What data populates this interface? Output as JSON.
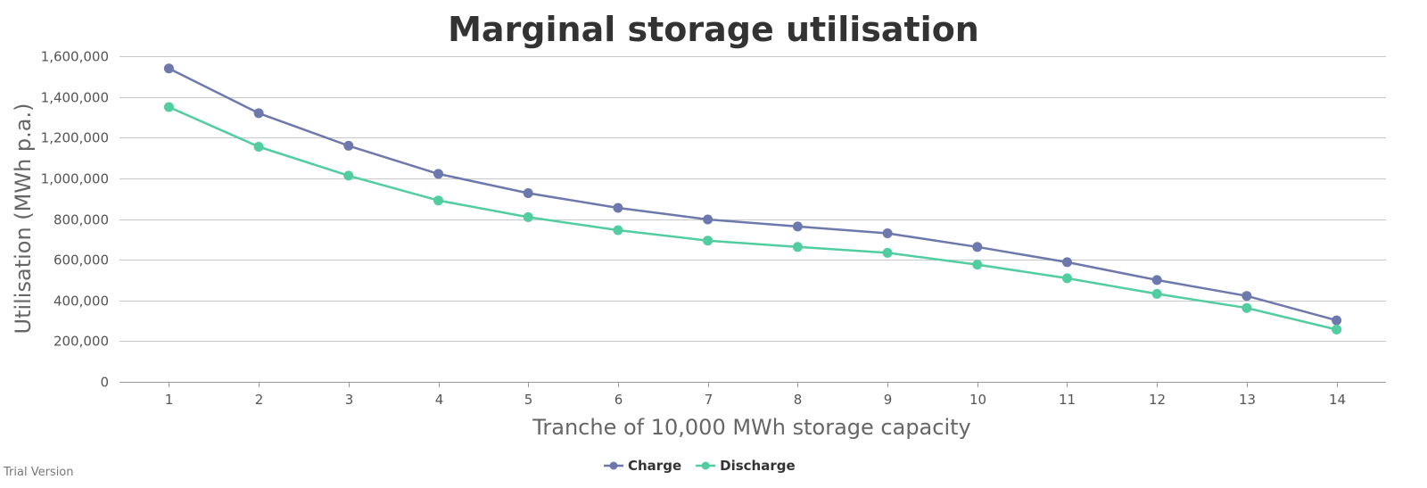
{
  "chart_data": {
    "type": "line",
    "title": "Marginal storage utilisation",
    "xlabel": "Tranche of 10,000 MWh storage capacity",
    "ylabel": "Utilisation (MWh p.a.)",
    "x": [
      1,
      2,
      3,
      4,
      5,
      6,
      7,
      8,
      9,
      10,
      11,
      12,
      13,
      14
    ],
    "xlim": [
      0.45,
      14.55
    ],
    "ylim": [
      0,
      1600000
    ],
    "yticks": [
      0,
      200000,
      400000,
      600000,
      800000,
      1000000,
      1200000,
      1400000,
      1600000
    ],
    "ytick_labels": [
      "0",
      "200,000",
      "400,000",
      "600,000",
      "800,000",
      "1,000,000",
      "1,200,000",
      "1,400,000",
      "1,600,000"
    ],
    "grid": true,
    "legend_position": "bottom-center",
    "series": [
      {
        "name": "Charge",
        "color": "#6d78ad",
        "values": [
          1540000,
          1320000,
          1160000,
          1022000,
          927000,
          855000,
          798000,
          763000,
          730000,
          663000,
          588000,
          500000,
          422000,
          302000
        ]
      },
      {
        "name": "Discharge",
        "color": "#51cda0",
        "values": [
          1350000,
          1155000,
          1013000,
          891000,
          809000,
          745000,
          694000,
          663000,
          634000,
          576000,
          509000,
          432000,
          363000,
          257000
        ]
      }
    ]
  },
  "watermark": "Trial Version"
}
